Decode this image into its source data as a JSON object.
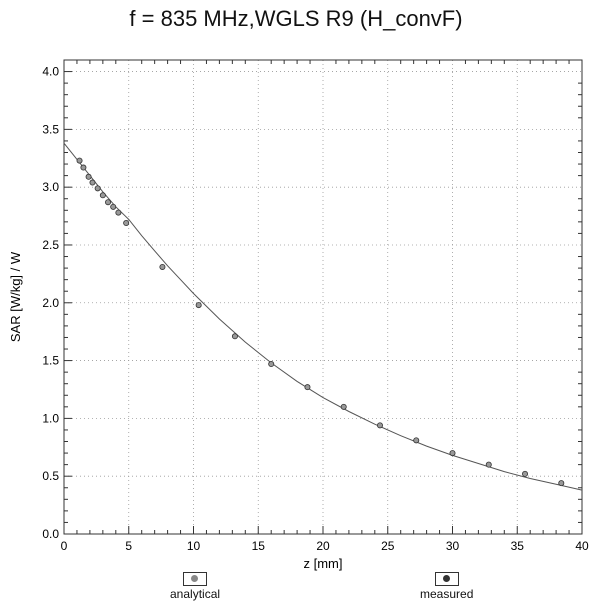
{
  "chart_data": {
    "type": "scatter",
    "title": "f = 835 MHz,WGLS R9 (H_convF)",
    "xlabel": "z [mm]",
    "ylabel": "SAR [W/kg] / W",
    "xlim": [
      0,
      40
    ],
    "ylim": [
      0,
      4.1
    ],
    "x_ticks": [
      "0",
      "5",
      "10",
      "15",
      "20",
      "25",
      "30",
      "35",
      "40"
    ],
    "y_ticks": [
      "0.0",
      "0.5",
      "1.0",
      "1.5",
      "2.0",
      "2.5",
      "3.0",
      "3.5",
      "4.0"
    ],
    "grid": true,
    "legend_position": "bottom",
    "series": [
      {
        "name": "analytical",
        "style": "line",
        "x": [
          0,
          1,
          2,
          3,
          4,
          5,
          6,
          7,
          8,
          9,
          10,
          12,
          14,
          16,
          18,
          20,
          22,
          24,
          26,
          28,
          30,
          32,
          34,
          36,
          38,
          40
        ],
        "values": [
          3.38,
          3.24,
          3.1,
          2.96,
          2.83,
          2.72,
          2.58,
          2.45,
          2.32,
          2.2,
          2.08,
          1.86,
          1.66,
          1.48,
          1.32,
          1.18,
          1.06,
          0.95,
          0.85,
          0.76,
          0.68,
          0.61,
          0.54,
          0.48,
          0.43,
          0.38
        ]
      },
      {
        "name": "measured",
        "style": "markers",
        "x": [
          1.2,
          1.5,
          1.9,
          2.2,
          2.6,
          3.0,
          3.4,
          3.8,
          4.2,
          4.8,
          7.6,
          10.4,
          13.2,
          16.0,
          18.8,
          21.6,
          24.4,
          27.2,
          30.0,
          32.8,
          35.6,
          38.4
        ],
        "values": [
          3.23,
          3.17,
          3.09,
          3.04,
          2.99,
          2.93,
          2.87,
          2.83,
          2.78,
          2.69,
          2.31,
          1.98,
          1.71,
          1.47,
          1.27,
          1.1,
          0.94,
          0.81,
          0.7,
          0.6,
          0.52,
          0.44
        ]
      }
    ]
  },
  "legend": {
    "items": [
      {
        "label": "analytical",
        "color": "#888888"
      },
      {
        "label": "measured",
        "color": "#333333"
      }
    ]
  },
  "colors": {
    "line": "#555555",
    "marker_fill": "#999999",
    "marker_stroke": "#333333",
    "grid": "#9a9a9a"
  }
}
